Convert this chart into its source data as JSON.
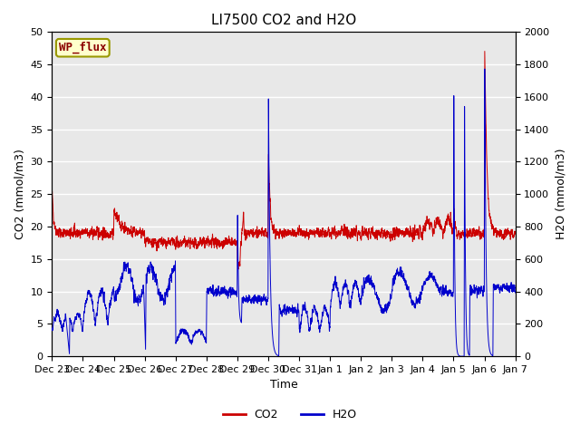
{
  "title": "LI7500 CO2 and H2O",
  "xlabel": "Time",
  "ylabel_left": "CO2 (mmol/m3)",
  "ylabel_right": "H2O (mmol/m3)",
  "site_label": "WP_flux",
  "co2_ylim": [
    0,
    50
  ],
  "h2o_ylim": [
    0,
    2000
  ],
  "co2_yticks": [
    0,
    5,
    10,
    15,
    20,
    25,
    30,
    35,
    40,
    45,
    50
  ],
  "h2o_yticks": [
    0,
    200,
    400,
    600,
    800,
    1000,
    1200,
    1400,
    1600,
    1800,
    2000
  ],
  "x_tick_labels": [
    "Dec 23",
    "Dec 24",
    "Dec 25",
    "Dec 26",
    "Dec 27",
    "Dec 28",
    "Dec 29",
    "Dec 30",
    "Dec 31",
    "Jan 1",
    "Jan 2",
    "Jan 3",
    "Jan 4",
    "Jan 5",
    "Jan 6",
    "Jan 7"
  ],
  "co2_color": "#cc0000",
  "h2o_color": "#0000cc",
  "background_color": "#e8e8e8",
  "grid_color": "#ffffff",
  "title_fontsize": 11,
  "axis_label_fontsize": 9,
  "tick_fontsize": 8,
  "legend_fontsize": 9,
  "site_label_fontsize": 9,
  "figwidth": 6.4,
  "figheight": 4.8,
  "dpi": 100
}
